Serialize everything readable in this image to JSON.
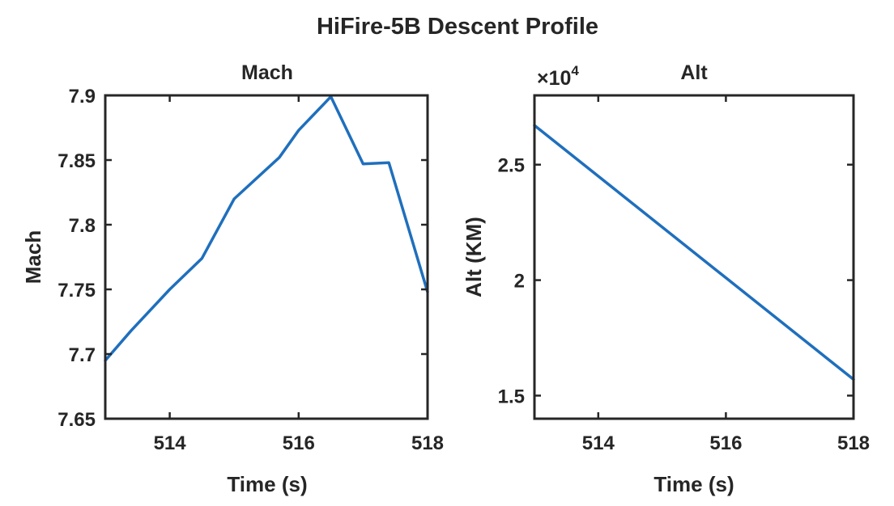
{
  "figure": {
    "title": "HiFire-5B Descent Profile"
  },
  "chart_data": [
    {
      "type": "line",
      "title": "Mach",
      "xlabel": "Time (s)",
      "ylabel": "Mach",
      "xlim": [
        513,
        518
      ],
      "ylim": [
        7.65,
        7.9
      ],
      "xticks": [
        514,
        516,
        518
      ],
      "xtick_labels": [
        "514",
        "516",
        "518"
      ],
      "yticks": [
        7.65,
        7.7,
        7.75,
        7.8,
        7.85,
        7.9
      ],
      "ytick_labels": [
        "7.65",
        "7.7",
        "7.75",
        "7.8",
        "7.85",
        "7.9"
      ],
      "series": [
        {
          "color": "#1f6fbd",
          "x": [
            513.0,
            513.4,
            514.0,
            514.5,
            515.0,
            515.7,
            516.0,
            516.5,
            517.0,
            517.4,
            518.0
          ],
          "y": [
            7.695,
            7.718,
            7.75,
            7.774,
            7.82,
            7.852,
            7.873,
            7.899,
            7.847,
            7.848,
            7.748
          ]
        }
      ]
    },
    {
      "type": "line",
      "title": "Alt",
      "xlabel": "Time (s)",
      "ylabel": "Alt (KM)",
      "exponent_label": "×10",
      "exponent": "4",
      "xlim": [
        513,
        518
      ],
      "ylim": [
        1.4,
        2.8
      ],
      "xticks": [
        514,
        516,
        518
      ],
      "xtick_labels": [
        "514",
        "516",
        "518"
      ],
      "yticks": [
        1.5,
        2.0,
        2.5
      ],
      "ytick_labels": [
        "1.5",
        "2",
        "2.5"
      ],
      "series": [
        {
          "color": "#1f6fbd",
          "x": [
            513.0,
            518.0
          ],
          "y": [
            2.67,
            1.57
          ]
        }
      ]
    }
  ]
}
